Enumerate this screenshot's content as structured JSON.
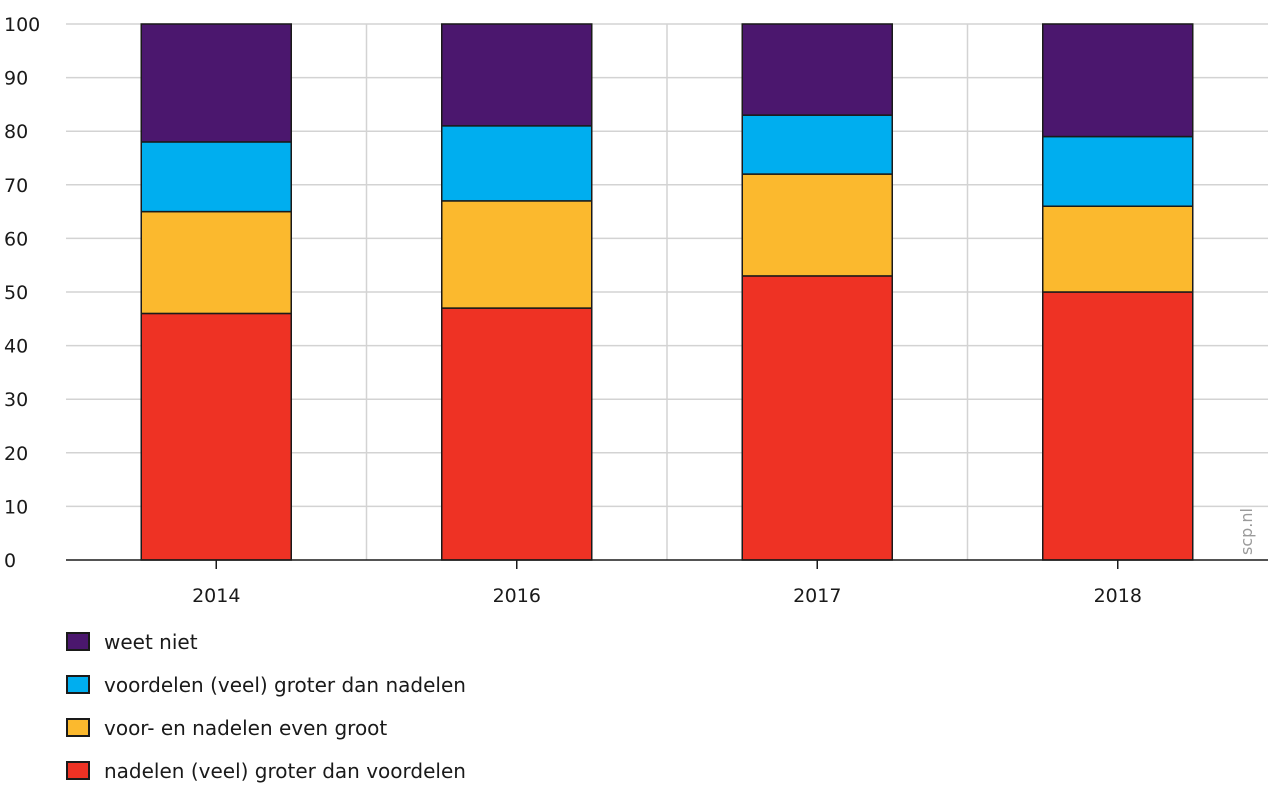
{
  "chart_data": {
    "type": "bar",
    "stacked": true,
    "categories": [
      "2014",
      "2016",
      "2017",
      "2018"
    ],
    "series": [
      {
        "name": "nadelen (veel) groter dan voordelen",
        "color": "#ee3224",
        "values": [
          46,
          47,
          53,
          50
        ]
      },
      {
        "name": "voor- en nadelen even groot",
        "color": "#fbb92e",
        "values": [
          19,
          20,
          19,
          16
        ]
      },
      {
        "name": "voordelen (veel) groter dan nadelen",
        "color": "#00aeef",
        "values": [
          13,
          14,
          11,
          13
        ]
      },
      {
        "name": "weet niet",
        "color": "#4b176e",
        "values": [
          22,
          19,
          17,
          21
        ]
      }
    ],
    "y_ticks": [
      "0",
      "10",
      "20",
      "30",
      "40",
      "50",
      "60",
      "70",
      "80",
      "90",
      "100"
    ],
    "ylim": [
      0,
      100
    ],
    "grid": true,
    "legend_position": "bottom-left"
  },
  "legend": [
    {
      "label": "weet niet",
      "color": "#4b176e"
    },
    {
      "label": "voordelen (veel) groter dan nadelen",
      "color": "#00aeef"
    },
    {
      "label": "voor- en nadelen even groot",
      "color": "#fbb92e"
    },
    {
      "label": "nadelen (veel) groter dan voordelen",
      "color": "#ee3224"
    }
  ],
  "watermark": "scp.nl"
}
